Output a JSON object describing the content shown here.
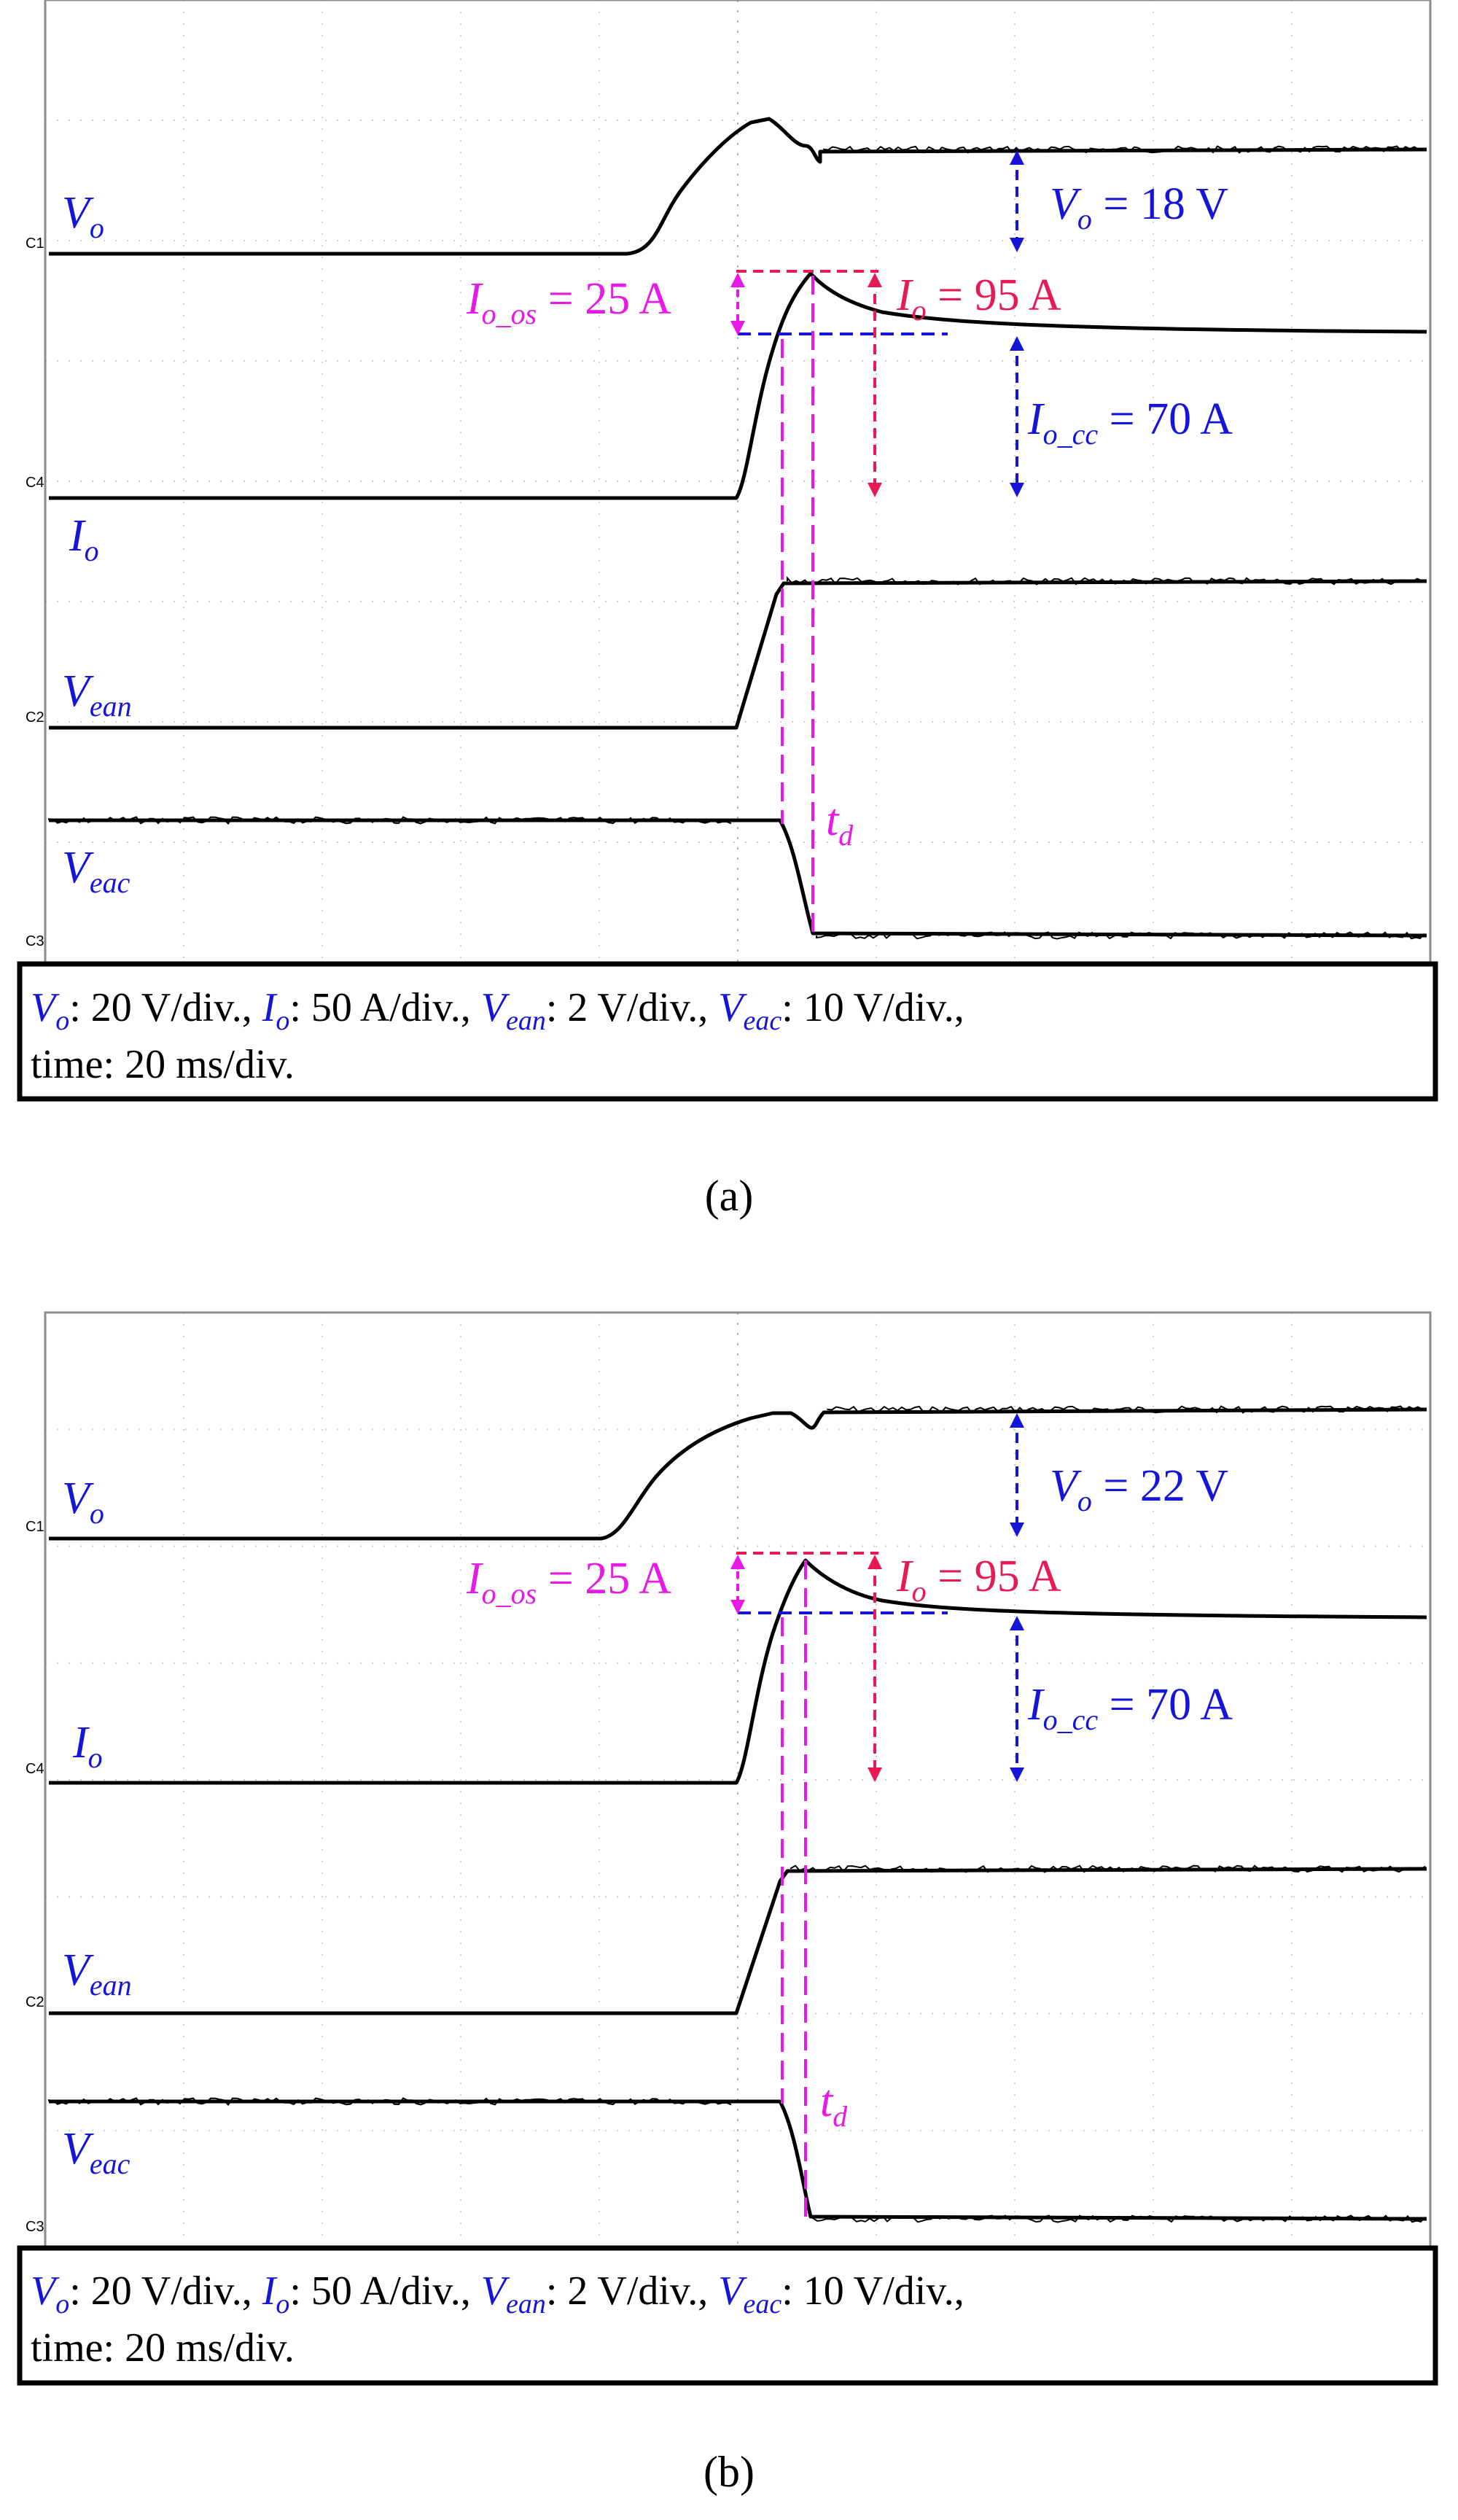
{
  "panels": [
    {
      "caption": "(a)",
      "channels": [
        "C1",
        "C4",
        "C2",
        "C3"
      ],
      "signals": {
        "vo": "V",
        "io": "I",
        "vean": "V",
        "veac": "V"
      },
      "vo_step": "V",
      "vo_step_value": " = 18 V",
      "io_peak_value": " = 95 A",
      "io_os_value": " = 25 A",
      "io_cc_value": " = 70 A",
      "td": "t",
      "legend": {
        "vo": ": 20 V/div., ",
        "io": ": 50 A/div., ",
        "vean": ": 2 V/div., ",
        "veac": ": 10 V/div.,",
        "time": "time: 20 ms/div."
      }
    },
    {
      "caption": "(b)",
      "channels": [
        "C1",
        "C4",
        "C2",
        "C3"
      ],
      "signals": {
        "vo": "V",
        "io": "I",
        "vean": "V",
        "veac": "V"
      },
      "vo_step": "V",
      "vo_step_value": " = 22 V",
      "io_peak_value": " = 95 A",
      "io_os_value": " = 25 A",
      "io_cc_value": " = 70 A",
      "td": "t",
      "legend": {
        "vo": ": 20 V/div., ",
        "io": ": 50 A/div., ",
        "vean": ": 2 V/div., ",
        "veac": ": 10 V/div.,",
        "time": "time: 20 ms/div."
      }
    }
  ],
  "subscripts": {
    "o": "o",
    "ean": "ean",
    "eac": "eac",
    "o_os": "o_os",
    "o_cc": "o_cc",
    "d": "d"
  },
  "colors": {
    "label": "#1515d8",
    "overshoot": "#e619e6",
    "peak": "#e61a55",
    "trace": "#000000"
  },
  "chart_data": [
    {
      "type": "line",
      "title": "",
      "grid": true,
      "divisions": {
        "x": 10,
        "y": 8
      },
      "time_per_div": "20 ms/div.",
      "vo_step": "18 V",
      "io_peak": "95 A",
      "io_overshoot": "25 A",
      "io_steady": "70 A",
      "series": [
        {
          "name": "Vo",
          "scale": "20 V/div.",
          "x": [
            0,
            4.0,
            5.3,
            5.6,
            5.75,
            5.95,
            10
          ],
          "y": [
            0,
            0,
            0.9,
            0.75,
            0.85,
            0.9,
            0.9
          ]
        },
        {
          "name": "Io",
          "scale": "50 A/div.",
          "x": [
            0,
            4.9,
            5.7,
            6.3,
            10
          ],
          "y": [
            0,
            0,
            1.9,
            1.5,
            1.4
          ]
        },
        {
          "name": "Vean",
          "scale": "2 V/div.",
          "x": [
            0,
            4.9,
            5.5,
            10
          ],
          "y": [
            0,
            0,
            1.25,
            1.25
          ]
        },
        {
          "name": "Veac",
          "scale": "10 V/div.",
          "x": [
            0,
            5.2,
            5.6,
            10
          ],
          "y": [
            0,
            0,
            -1.0,
            -1.0
          ]
        }
      ]
    },
    {
      "type": "line",
      "title": "",
      "grid": true,
      "divisions": {
        "x": 10,
        "y": 8
      },
      "time_per_div": "20 ms/div.",
      "vo_step": "22 V",
      "io_peak": "95 A",
      "io_overshoot": "25 A",
      "io_steady": "70 A",
      "series": [
        {
          "name": "Vo",
          "scale": "20 V/div.",
          "x": [
            0,
            3.8,
            5.2,
            5.5,
            5.75,
            5.95,
            10
          ],
          "y": [
            0,
            0,
            1.2,
            1.2,
            1.0,
            1.1,
            1.1
          ]
        },
        {
          "name": "Io",
          "scale": "50 A/div.",
          "x": [
            0,
            4.9,
            5.7,
            6.3,
            10
          ],
          "y": [
            0,
            0,
            1.9,
            1.5,
            1.4
          ]
        },
        {
          "name": "Vean",
          "scale": "2 V/div.",
          "x": [
            0,
            4.9,
            5.4,
            10
          ],
          "y": [
            0,
            0,
            1.2,
            1.2
          ]
        },
        {
          "name": "Veac",
          "scale": "10 V/div.",
          "x": [
            0,
            5.2,
            5.6,
            10
          ],
          "y": [
            0,
            0,
            -1.05,
            -1.05
          ]
        }
      ]
    }
  ]
}
